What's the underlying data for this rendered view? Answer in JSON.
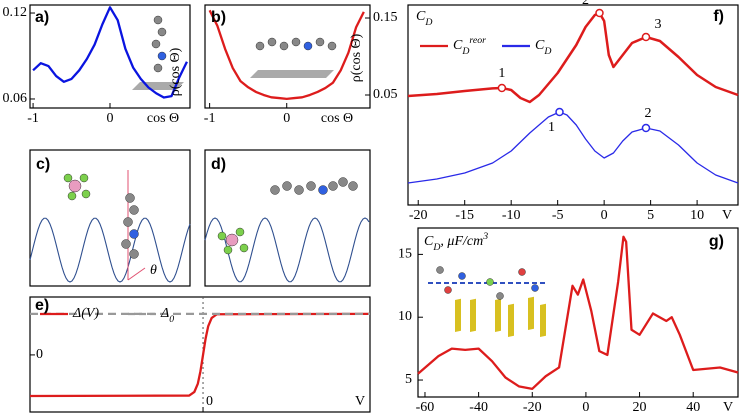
{
  "chart_data": [
    {
      "type": "line",
      "label": "a)",
      "ylabel": "ρ(cos Θ)",
      "xlabel": "cos Θ",
      "x": [
        -1,
        -0.9,
        -0.8,
        -0.7,
        -0.6,
        -0.5,
        -0.4,
        -0.3,
        -0.2,
        -0.1,
        0,
        0.1,
        0.2,
        0.3,
        0.4,
        0.5,
        0.6,
        0.7,
        0.8,
        0.9,
        1
      ],
      "series": [
        {
          "color": "#0a14e0",
          "values": [
            0.08,
            0.085,
            0.083,
            0.076,
            0.072,
            0.074,
            0.08,
            0.088,
            0.098,
            0.112,
            0.124,
            0.115,
            0.095,
            0.082,
            0.074,
            0.068,
            0.064,
            0.061,
            0.062,
            0.075,
            0.086
          ]
        }
      ],
      "xlim": [
        -1.04,
        1.04
      ],
      "ylim": [
        0.0537,
        0.1256
      ],
      "xticks": [
        -1,
        0
      ],
      "yticks": [
        0.06,
        0.12
      ]
    },
    {
      "type": "line",
      "label": "b)",
      "ylabel": "ρ(cos Θ)",
      "xlabel": "cos Θ",
      "x": [
        -1,
        -0.9,
        -0.8,
        -0.7,
        -0.6,
        -0.5,
        -0.4,
        -0.3,
        -0.2,
        -0.1,
        0,
        0.1,
        0.2,
        0.3,
        0.4,
        0.5,
        0.6,
        0.7,
        0.8,
        0.9,
        1
      ],
      "series": [
        {
          "color": "#dd1c1c",
          "values": [
            0.16,
            0.14,
            0.11,
            0.085,
            0.068,
            0.06,
            0.054,
            0.05,
            0.047,
            0.046,
            0.045,
            0.046,
            0.047,
            0.05,
            0.054,
            0.059,
            0.066,
            0.082,
            0.105,
            0.138,
            0.158
          ]
        }
      ],
      "xlim": [
        -1.06,
        1.08
      ],
      "ylim": [
        0.0331,
        0.1669
      ],
      "xticks": [
        -1,
        0
      ],
      "yticks": [
        0.05,
        0.15
      ]
    },
    {
      "type": "schematic",
      "label": "c)",
      "annotation": "θ"
    },
    {
      "type": "schematic",
      "label": "d)"
    },
    {
      "type": "line",
      "label": "e)",
      "xlabel": "V",
      "x": [
        -1,
        -0.08,
        -0.05,
        -0.03,
        -0.015,
        0,
        0.015,
        0.03,
        0.05,
        0.08,
        0.965
      ],
      "series": [
        {
          "name": "Δ(V)",
          "color": "#dd1c1c",
          "values": [
            -1,
            -0.99,
            -0.9,
            -0.7,
            -0.4,
            0,
            0.4,
            0.7,
            0.9,
            0.99,
            1
          ]
        },
        {
          "name": "Δ_0",
          "color": "#999999",
          "dashed": true,
          "values": [
            1,
            1,
            1,
            1,
            1,
            1,
            1,
            1,
            1,
            1,
            1
          ]
        }
      ],
      "xlim": [
        -1,
        0.965
      ],
      "ylim": [
        -1.39,
        1.41
      ],
      "xticks": [
        0
      ],
      "yticks": [
        0
      ],
      "xgrid": true,
      "legend": "upper left"
    },
    {
      "type": "line",
      "label": "f)",
      "title": "C_D",
      "xlabel": "V",
      "series": [
        {
          "name": "C_D^reor",
          "color": "#dd1c1c",
          "x": [
            -21.1,
            -18,
            -15,
            -12,
            -11,
            -10,
            -9,
            -8,
            -7,
            -5,
            -3,
            -2,
            -1,
            -0.5,
            0,
            0.5,
            1,
            2,
            3,
            4.5,
            6,
            8,
            10,
            12,
            14.4
          ],
          "values": [
            5.45,
            5.55,
            5.7,
            5.83,
            5.85,
            5.75,
            5.35,
            5.15,
            5.5,
            6.6,
            8.0,
            8.9,
            9.5,
            9.6,
            9.2,
            7.5,
            6.9,
            7.5,
            8.1,
            8.4,
            8.2,
            7.4,
            6.5,
            5.9,
            5.5
          ]
        },
        {
          "name": "C_D",
          "color": "#2a2ae8",
          "x": [
            -21.1,
            -18,
            -15,
            -12,
            -10,
            -8,
            -6,
            -4.8,
            -4,
            -3,
            -2,
            -1,
            0,
            1,
            2,
            3,
            4.5,
            6,
            8,
            10,
            12,
            14.4
          ],
          "values": [
            1.1,
            1.3,
            1.6,
            2.1,
            2.7,
            3.6,
            4.4,
            4.65,
            4.5,
            4.0,
            3.3,
            2.7,
            2.35,
            2.6,
            3.2,
            3.65,
            3.85,
            3.7,
            3.0,
            2.1,
            1.5,
            1.1
          ]
        }
      ],
      "annotations": [
        {
          "text": "1",
          "series": 0,
          "x": -11,
          "y": 5.85
        },
        {
          "text": "2",
          "series": 0,
          "x": -0.5,
          "y": 9.6
        },
        {
          "text": "3",
          "series": 0,
          "x": 4.5,
          "y": 8.4
        },
        {
          "text": "1",
          "series": 1,
          "x": -4.8,
          "y": 4.65
        },
        {
          "text": "2",
          "series": 1,
          "x": 4.5,
          "y": 3.85
        }
      ],
      "xlim": [
        -21.1,
        14.4
      ],
      "ylim": [
        0,
        10
      ],
      "xticks": [
        -20,
        -15,
        -10,
        -5,
        0,
        5,
        10
      ],
      "legend": "upper left"
    },
    {
      "type": "line",
      "label": "g)",
      "title": "C_D, μF/cm^3",
      "xlabel": "V",
      "x": [
        -62.6,
        -55,
        -50,
        -45,
        -40,
        -35,
        -30,
        -25,
        -20,
        -15,
        -10,
        -5,
        -3,
        -1,
        2,
        5,
        8,
        12,
        14,
        15,
        17,
        20,
        25,
        30,
        32,
        35,
        40,
        50,
        56.7
      ],
      "series": [
        {
          "color": "#dd1c1c",
          "values": [
            5.5,
            6.9,
            7.5,
            7.4,
            7.5,
            6.5,
            5.2,
            4.5,
            4.3,
            5.3,
            6.0,
            12.5,
            11.8,
            13.0,
            10.5,
            7.3,
            7.0,
            12.8,
            16.4,
            16.0,
            9.0,
            8.6,
            10.3,
            9.7,
            10.0,
            8.6,
            5.8,
            6.0,
            5.6
          ]
        }
      ],
      "xlim": [
        -62.6,
        56.7
      ],
      "ylim": [
        3.65,
        17.1
      ],
      "xticks": [
        -60,
        -40,
        -20,
        0,
        20,
        40
      ],
      "yticks": [
        5,
        10,
        15
      ]
    }
  ]
}
